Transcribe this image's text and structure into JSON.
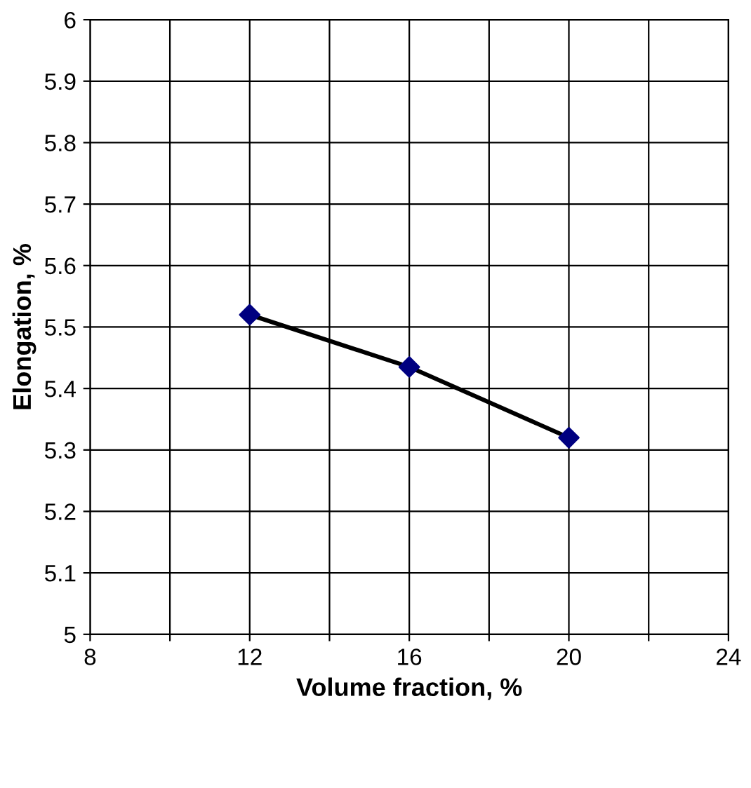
{
  "chart_data": {
    "type": "line",
    "xlabel": "Volume fraction, %",
    "ylabel": "Elongation, %",
    "x": [
      12,
      16,
      20
    ],
    "series": [
      {
        "color": "#000000",
        "colors": [
          "#000080",
          "#000080",
          "#000080"
        ],
        "values": [
          5.52,
          5.435,
          5.32
        ]
      }
    ],
    "marker": "diamond",
    "line_style": "solid",
    "xlim": [
      8,
      24
    ],
    "xticks": [
      8,
      {
        "value": 10,
        "label": null
      },
      12,
      {
        "value": 14,
        "label": null
      },
      16,
      {
        "value": 18,
        "label": null
      },
      20,
      {
        "value": 22,
        "label": null
      },
      24
    ],
    "ylim": [
      5,
      6
    ],
    "yticks": [
      5,
      5.1,
      5.2,
      5.3,
      5.4,
      5.5,
      5.6,
      5.7,
      5.8,
      5.9,
      6
    ],
    "grid": true,
    "legend": false
  }
}
